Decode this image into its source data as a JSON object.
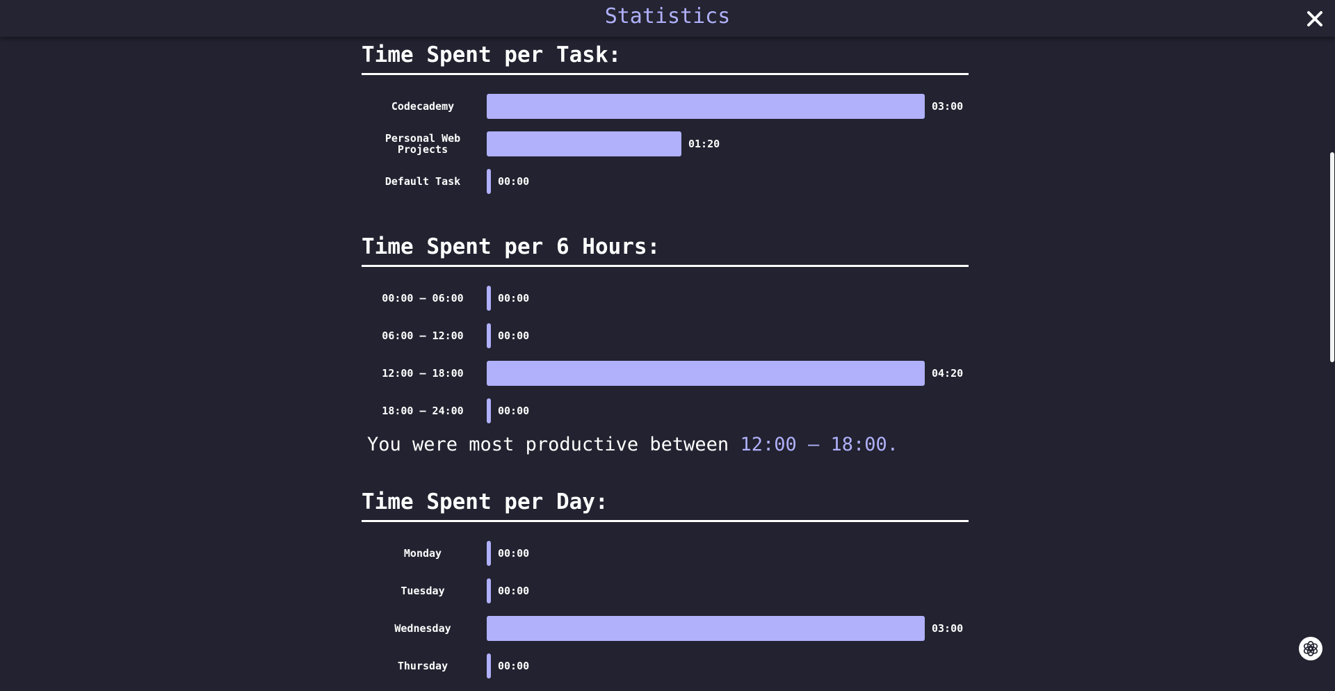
{
  "header": {
    "title": "Statistics"
  },
  "icons": {
    "close": "close-icon",
    "assistant": "assistant-icon"
  },
  "colors": {
    "background": "#222230",
    "accent": "#b0b0fb",
    "text": "#ffffff"
  },
  "sections": [
    {
      "title": "Time Spent per Task:",
      "max_minutes": 180,
      "rows": [
        {
          "label": "Codecademy",
          "value": "03:00",
          "minutes": 180
        },
        {
          "label": "Personal Web Projects",
          "value": "01:20",
          "minutes": 80
        },
        {
          "label": "Default Task",
          "value": "00:00",
          "minutes": 0
        }
      ]
    },
    {
      "title": "Time Spent per 6 Hours:",
      "max_minutes": 260,
      "rows": [
        {
          "label": "00:00 – 06:00",
          "value": "00:00",
          "minutes": 0
        },
        {
          "label": "06:00 – 12:00",
          "value": "00:00",
          "minutes": 0
        },
        {
          "label": "12:00 – 18:00",
          "value": "04:20",
          "minutes": 260
        },
        {
          "label": "18:00 – 24:00",
          "value": "00:00",
          "minutes": 0
        }
      ],
      "summary": {
        "prefix": "You were most productive between ",
        "highlight": "12:00 – 18:00."
      }
    },
    {
      "title": "Time Spent per Day:",
      "max_minutes": 180,
      "rows": [
        {
          "label": "Monday",
          "value": "00:00",
          "minutes": 0
        },
        {
          "label": "Tuesday",
          "value": "00:00",
          "minutes": 0
        },
        {
          "label": "Wednesday",
          "value": "03:00",
          "minutes": 180
        },
        {
          "label": "Thursday",
          "value": "00:00",
          "minutes": 0
        }
      ]
    }
  ],
  "scrollbar": {
    "position_fraction": 0.27
  }
}
